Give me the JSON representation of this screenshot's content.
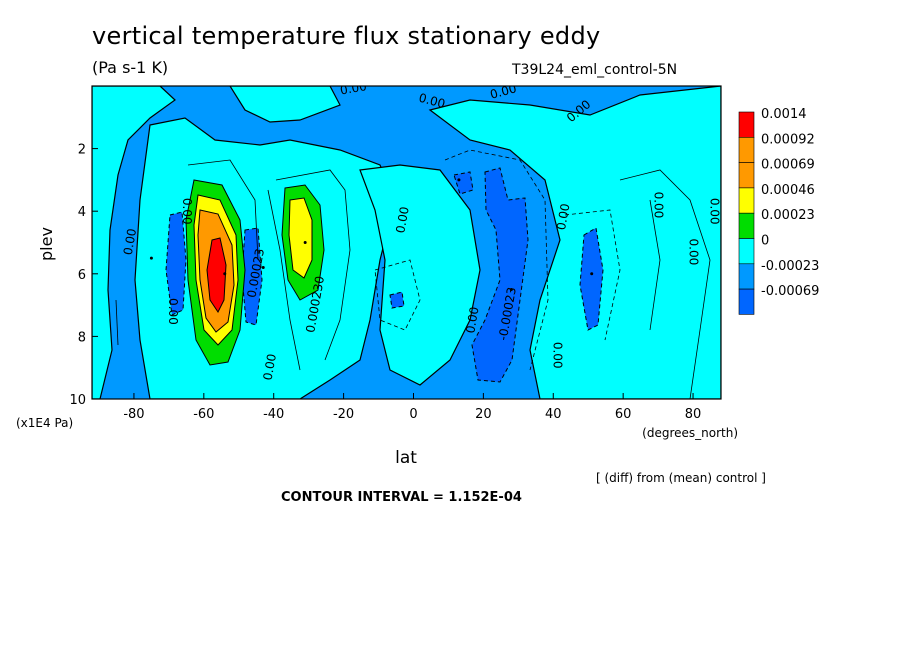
{
  "title": "vertical temperature flux stationary eddy",
  "units": "(Pa s-1 K)",
  "run_id": "T39L24_eml_control-5N",
  "footnote": "[ (diff) from (mean) control ]",
  "contour_interval": "CONTOUR INTERVAL = 1.152E-04",
  "colors": {
    "red": "#ff0000",
    "orange": "#ff9900",
    "yellow": "#ffff00",
    "green": "#00dd00",
    "cyan": "#00ffff",
    "blue_light": "#0099ff",
    "blue_dark": "#0066ff",
    "frame": "#000000"
  },
  "chart_data": {
    "type": "heatmap",
    "title": "vertical temperature flux stationary eddy",
    "xlabel": "lat",
    "xunits": "(degrees_north)",
    "ylabel": "plev",
    "yunits": "(x1E4 Pa)",
    "xlim": [
      -92,
      88
    ],
    "ylim": [
      10,
      0
    ],
    "xticks": [
      -80,
      -60,
      -40,
      -20,
      0,
      20,
      40,
      60,
      80
    ],
    "xtick_labels": [
      "-80",
      "-60",
      "-40",
      "-20",
      "0",
      "20",
      "40",
      "60",
      "80"
    ],
    "yticks": [
      2,
      4,
      6,
      8,
      10
    ],
    "ytick_labels": [
      "2",
      "4",
      "6",
      "8",
      "10"
    ],
    "colorbar": {
      "labels": [
        "0.0014",
        "0.00092",
        "0.00069",
        "0.00046",
        "0.00023",
        "0",
        "-0.00023",
        "-0.00069"
      ],
      "colors": [
        "#ff0000",
        "#ff9900",
        "#ff9900",
        "#ffff00",
        "#00dd00",
        "#00ffff",
        "#0099ff",
        "#0066ff"
      ]
    },
    "contour_labels": [
      {
        "text": "0.00",
        "lat": -66,
        "p": 4.0,
        "rot": 90
      },
      {
        "text": "0.00",
        "lat": -80,
        "p": 5.0,
        "rot": -80
      },
      {
        "text": "0.00",
        "lat": -70,
        "p": 7.2,
        "rot": 90
      },
      {
        "text": "0.00023",
        "lat": -44,
        "p": 6.0,
        "rot": -80
      },
      {
        "text": "0.00",
        "lat": -40,
        "p": 9.0,
        "rot": -80
      },
      {
        "text": "0.000230",
        "lat": -27,
        "p": 7.0,
        "rot": -80
      },
      {
        "text": "0.00",
        "lat": -2,
        "p": 4.3,
        "rot": -80
      },
      {
        "text": "0.00",
        "lat": 18,
        "p": 7.5,
        "rot": -80
      },
      {
        "text": "0.00",
        "lat": -17,
        "p": 0.2,
        "rot": -10
      },
      {
        "text": "0.00",
        "lat": 5,
        "p": 0.6,
        "rot": 15
      },
      {
        "text": "0.00",
        "lat": 26,
        "p": 0.3,
        "rot": -15
      },
      {
        "text": "0.00",
        "lat": 48,
        "p": 0.9,
        "rot": -40
      },
      {
        "text": "-0.00023",
        "lat": 28,
        "p": 7.3,
        "rot": -80
      },
      {
        "text": "0.00",
        "lat": 40,
        "p": 8.6,
        "rot": 90
      },
      {
        "text": "0.00",
        "lat": 44,
        "p": 4.2,
        "rot": -80
      },
      {
        "text": "0.00",
        "lat": 69,
        "p": 3.8,
        "rot": 90
      },
      {
        "text": "0.00",
        "lat": 79,
        "p": 5.3,
        "rot": 90
      },
      {
        "text": "0.00",
        "lat": 85,
        "p": 4.0,
        "rot": 90
      }
    ],
    "features": [
      {
        "kind": "max",
        "lat": -54,
        "p": 6.0,
        "level": 0.0014
      },
      {
        "kind": "max",
        "lat": -31,
        "p": 5.0,
        "level": 0.00069
      },
      {
        "kind": "min",
        "lat": -75,
        "p": 5.5,
        "level": -0.00023
      },
      {
        "kind": "min",
        "lat": -43,
        "p": 5.8,
        "level": -0.00069
      },
      {
        "kind": "min",
        "lat": 13,
        "p": 3.0,
        "level": -0.00023
      },
      {
        "kind": "min",
        "lat": 28,
        "p": 6.5,
        "level": -0.00069
      },
      {
        "kind": "min",
        "lat": 51,
        "p": 6.0,
        "level": -0.00069
      }
    ]
  }
}
